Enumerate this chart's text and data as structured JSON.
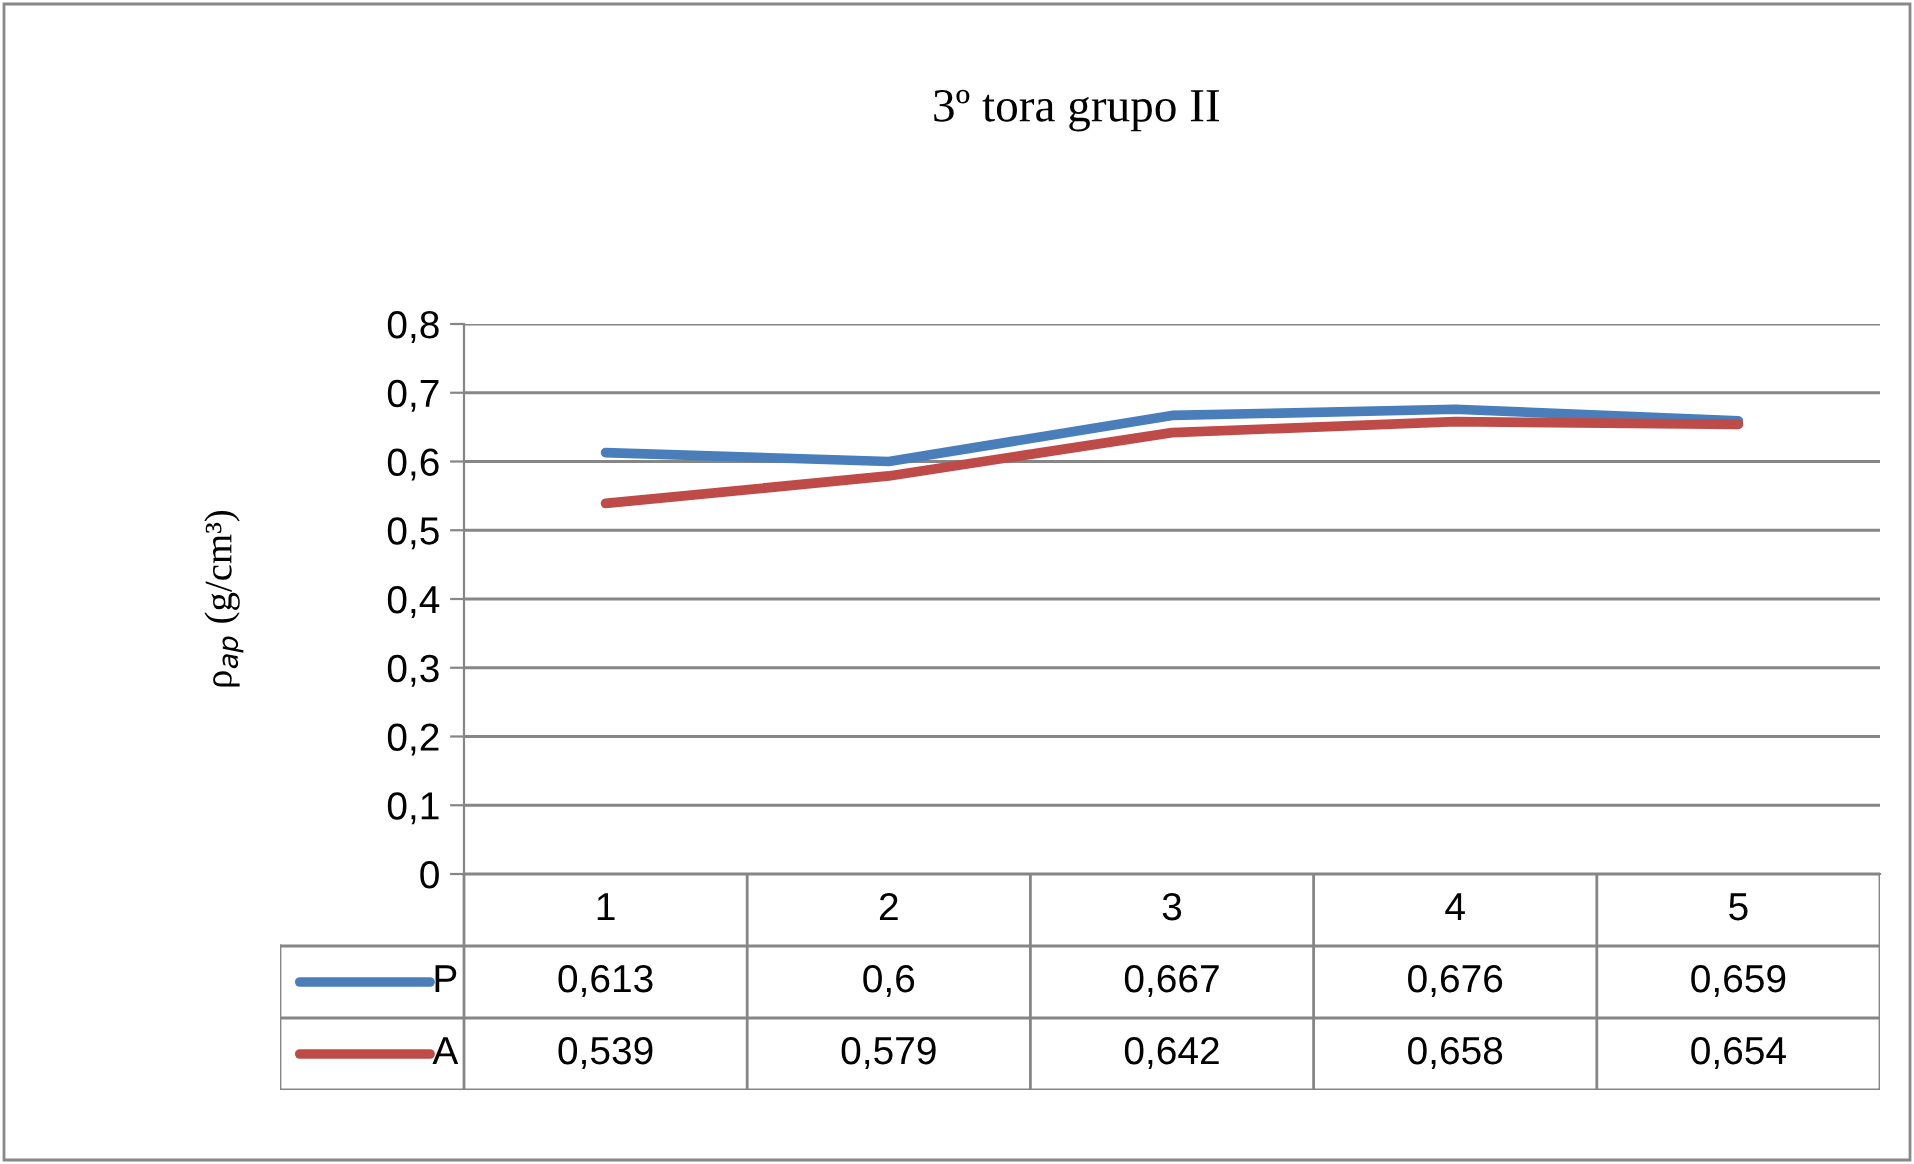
{
  "chart_data": {
    "type": "line",
    "title": "3º tora grupo II",
    "ylabel": "ρ$_{ap}$ (g/cm³)",
    "categories": [
      "1",
      "2",
      "3",
      "4",
      "5"
    ],
    "series": [
      {
        "name": "P",
        "color": "#4a7ebb",
        "values": [
          0.613,
          0.6,
          0.667,
          0.676,
          0.659
        ],
        "value_labels": [
          "0,613",
          "0,6",
          "0,667",
          "0,676",
          "0,659"
        ]
      },
      {
        "name": "A",
        "color": "#be4b48",
        "values": [
          0.539,
          0.579,
          0.642,
          0.658,
          0.654
        ],
        "value_labels": [
          "0,539",
          "0,579",
          "0,642",
          "0,658",
          "0,654"
        ]
      }
    ],
    "ylim": [
      0,
      0.8
    ],
    "yticks": [
      {
        "value": 0,
        "label": "0"
      },
      {
        "value": 0.1,
        "label": "0,1"
      },
      {
        "value": 0.2,
        "label": "0,2"
      },
      {
        "value": 0.3,
        "label": "0,3"
      },
      {
        "value": 0.4,
        "label": "0,4"
      },
      {
        "value": 0.5,
        "label": "0,5"
      },
      {
        "value": 0.6,
        "label": "0,6"
      },
      {
        "value": 0.7,
        "label": "0,7"
      },
      {
        "value": 0.8,
        "label": "0,8"
      }
    ],
    "grid": "y",
    "legend": "bottom",
    "marker": "none",
    "line_style": "solid"
  }
}
